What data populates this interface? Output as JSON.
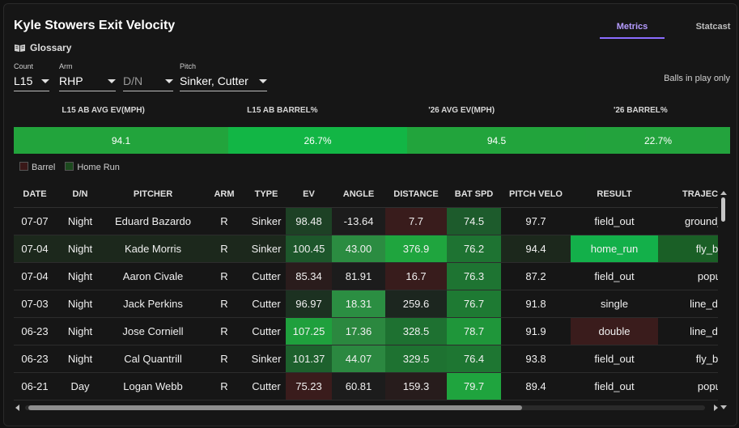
{
  "title": "Kyle Stowers Exit Velocity",
  "glossary_label": "Glossary",
  "tabs": [
    "Metrics",
    "Statcast"
  ],
  "filters": {
    "count": {
      "label": "Count",
      "value": "L15"
    },
    "arm": {
      "label": "Arm",
      "value": "RHP"
    },
    "dn": {
      "label": "",
      "value": "D/N"
    },
    "pitch": {
      "label": "Pitch",
      "value": "Sinker, Cutter"
    }
  },
  "balls_in_play": "Balls in play only",
  "summary": {
    "headers": [
      "L15 AB AVG EV(MPH)",
      "L15 AB BARREL%",
      "'26 AVG EV(MPH)",
      "'26 BARREL%"
    ],
    "values": [
      "94.1",
      "26.7%",
      "94.5",
      "22.7%"
    ],
    "colors": [
      "#22a43c",
      "#12b645",
      "#22a43c",
      "#23a33d"
    ]
  },
  "legend": {
    "barrel": "Barrel",
    "home_run": "Home Run",
    "barrel_color": "#3a1818",
    "home_run_color": "#1c4a1e"
  },
  "table": {
    "columns": [
      "DATE",
      "D/N",
      "PITCHER",
      "ARM",
      "TYPE",
      "EV",
      "ANGLE",
      "DISTANCE",
      "BAT SPD",
      "PITCH VELO",
      "RESULT",
      "TRAJECTORY"
    ],
    "rows": [
      [
        "07-07",
        "Night",
        "Eduard Bazardo",
        "R",
        "Sinker",
        "98.48",
        "-13.64",
        "7.7",
        "74.5",
        "97.7",
        "field_out",
        "ground_ball"
      ],
      [
        "07-04",
        "Night",
        "Kade Morris",
        "R",
        "Sinker",
        "100.45",
        "43.00",
        "376.9",
        "76.2",
        "94.4",
        "home_run",
        "fly_ball"
      ],
      [
        "07-04",
        "Night",
        "Aaron Civale",
        "R",
        "Cutter",
        "85.34",
        "81.91",
        "16.7",
        "76.3",
        "87.2",
        "field_out",
        "popup"
      ],
      [
        "07-03",
        "Night",
        "Jack Perkins",
        "R",
        "Cutter",
        "96.97",
        "18.31",
        "259.6",
        "76.7",
        "91.8",
        "single",
        "line_drive"
      ],
      [
        "06-23",
        "Night",
        "Jose Corniell",
        "R",
        "Cutter",
        "107.25",
        "17.36",
        "328.5",
        "78.7",
        "91.9",
        "double",
        "line_drive"
      ],
      [
        "06-23",
        "Night",
        "Cal Quantrill",
        "R",
        "Sinker",
        "101.37",
        "44.07",
        "329.5",
        "76.4",
        "93.8",
        "field_out",
        "fly_ball"
      ],
      [
        "06-21",
        "Day",
        "Logan Webb",
        "R",
        "Cutter",
        "75.23",
        "60.81",
        "159.3",
        "79.7",
        "89.4",
        "field_out",
        "popup"
      ]
    ]
  }
}
